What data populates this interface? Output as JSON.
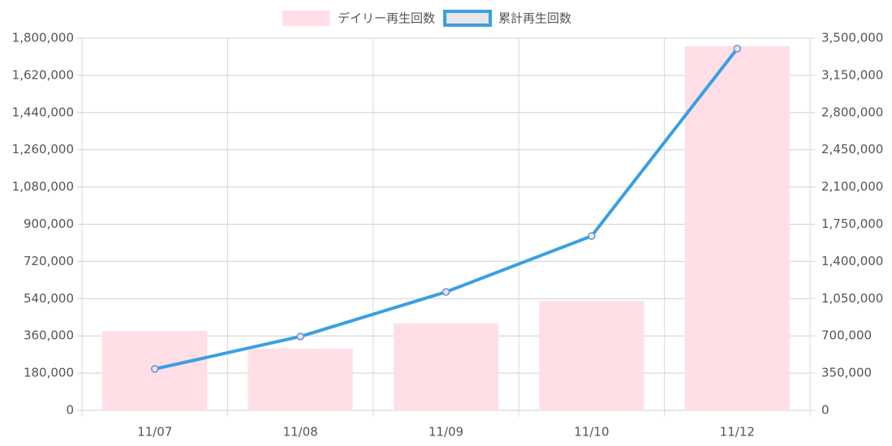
{
  "chart_data": {
    "type": "bar_line",
    "categories": [
      "11/07",
      "11/08",
      "11/09",
      "11/10",
      "11/12"
    ],
    "series": [
      {
        "name": "デイリー再生回数",
        "type": "bar",
        "axis": "y",
        "color": "#ffdfe5",
        "values": [
          384000,
          298000,
          420000,
          529000,
          1761000
        ]
      },
      {
        "name": "累計再生回数",
        "type": "line",
        "axis": "y2",
        "color": "#3a9fe3",
        "values": [
          389000,
          694000,
          1113000,
          1639000,
          3401000
        ]
      }
    ],
    "ylim": [
      0,
      1800000
    ],
    "yticks": [
      0,
      {
        "value": 180000,
        "label": "180,000"
      },
      {
        "value": 360000,
        "label": "360,000"
      },
      {
        "value": 540000,
        "label": "540,000"
      },
      {
        "value": 720000,
        "label": "720,000"
      },
      {
        "value": 900000,
        "label": "900,000"
      },
      {
        "value": 1080000,
        "label": "1,080,000"
      },
      {
        "value": 1260000,
        "label": "1,260,000"
      },
      {
        "value": 1440000,
        "label": "1,440,000"
      },
      {
        "value": 1620000,
        "label": "1,620,000"
      },
      {
        "value": 1800000,
        "label": "1,800,000"
      }
    ],
    "y2lim": [
      0,
      3500000
    ],
    "y2ticks": [
      0,
      {
        "value": 350000,
        "label": "350,000"
      },
      {
        "value": 700000,
        "label": "700,000"
      },
      {
        "value": 1050000,
        "label": "1,050,000"
      },
      {
        "value": 1400000,
        "label": "1,400,000"
      },
      {
        "value": 1750000,
        "label": "1,750,000"
      },
      {
        "value": 2100000,
        "label": "2,100,000"
      },
      {
        "value": 2450000,
        "label": "2,450,000"
      },
      {
        "value": 2800000,
        "label": "2,800,000"
      },
      {
        "value": 3150000,
        "label": "3,150,000"
      },
      {
        "value": 3500000,
        "label": "3,500,000"
      }
    ],
    "grid": true,
    "legend": "top"
  }
}
